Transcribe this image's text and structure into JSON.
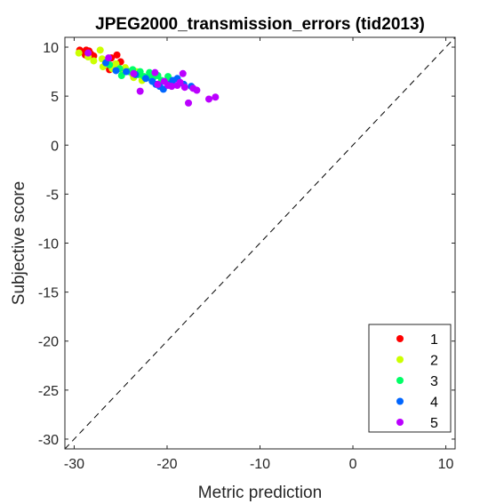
{
  "chart_data": {
    "type": "scatter",
    "title": "JPEG2000_transmission_errors (tid2013)",
    "xlabel": "Metric prediction",
    "ylabel": "Subjective score",
    "xlim": [
      -31,
      11
    ],
    "ylim": [
      -31,
      11
    ],
    "xticks": [
      -30,
      -20,
      -10,
      0,
      10
    ],
    "yticks": [
      10,
      5,
      0,
      -5,
      -10,
      -15,
      -20,
      -25,
      -30
    ],
    "grid": false,
    "legend_position": "bottom-right",
    "reference_line": "y = x (dashed)",
    "series": [
      {
        "name": "1",
        "color": "#ff0000",
        "points": [
          [
            -29.4,
            9.7
          ],
          [
            -29.0,
            9.5
          ],
          [
            -28.7,
            9.7
          ],
          [
            -28.4,
            9.6
          ],
          [
            -28.2,
            9.3
          ],
          [
            -27.9,
            9.1
          ],
          [
            -28.8,
            9.2
          ],
          [
            -26.0,
            8.9
          ],
          [
            -25.4,
            9.2
          ],
          [
            -25.0,
            8.5
          ],
          [
            -26.2,
            7.7
          ],
          [
            -25.6,
            8.2
          ]
        ]
      },
      {
        "name": "2",
        "color": "#ccff00",
        "points": [
          [
            -29.5,
            9.4
          ],
          [
            -28.5,
            9.0
          ],
          [
            -27.9,
            8.6
          ],
          [
            -27.2,
            9.7
          ],
          [
            -27.0,
            8.8
          ],
          [
            -26.5,
            8.3
          ],
          [
            -26.9,
            8.0
          ],
          [
            -25.9,
            7.8
          ],
          [
            -25.5,
            8.3
          ],
          [
            -24.8,
            7.6
          ],
          [
            -24.5,
            7.9
          ],
          [
            -23.7,
            7.2
          ],
          [
            -23.3,
            7.5
          ],
          [
            -23.6,
            6.9
          ],
          [
            -22.7,
            6.6
          ]
        ]
      },
      {
        "name": "3",
        "color": "#00ff66",
        "points": [
          [
            -26.2,
            8.2
          ],
          [
            -25.1,
            7.8
          ],
          [
            -24.9,
            7.1
          ],
          [
            -24.1,
            7.5
          ],
          [
            -23.7,
            7.7
          ],
          [
            -23.1,
            7.2
          ],
          [
            -22.5,
            7.0
          ],
          [
            -22.1,
            6.9
          ],
          [
            -21.5,
            6.9
          ],
          [
            -21.0,
            7.1
          ],
          [
            -20.6,
            6.6
          ],
          [
            -20.1,
            6.5
          ],
          [
            -19.9,
            7.0
          ],
          [
            -22.9,
            7.5
          ],
          [
            -21.9,
            7.4
          ]
        ]
      },
      {
        "name": "4",
        "color": "#0066ff",
        "points": [
          [
            -26.6,
            8.4
          ],
          [
            -25.5,
            7.6
          ],
          [
            -24.4,
            7.5
          ],
          [
            -23.4,
            7.2
          ],
          [
            -22.3,
            6.8
          ],
          [
            -21.6,
            6.5
          ],
          [
            -21.2,
            6.2
          ],
          [
            -20.8,
            6.0
          ],
          [
            -20.4,
            5.7
          ],
          [
            -19.7,
            6.2
          ],
          [
            -19.4,
            6.6
          ],
          [
            -18.9,
            6.8
          ],
          [
            -18.2,
            6.2
          ],
          [
            -17.4,
            6.0
          ]
        ]
      },
      {
        "name": "5",
        "color": "#bb00ff",
        "points": [
          [
            -28.5,
            9.4
          ],
          [
            -26.3,
            8.9
          ],
          [
            -23.6,
            7.3
          ],
          [
            -22.9,
            5.5
          ],
          [
            -21.3,
            7.4
          ],
          [
            -21.0,
            6.2
          ],
          [
            -20.3,
            6.5
          ],
          [
            -19.9,
            6.1
          ],
          [
            -19.5,
            6.0
          ],
          [
            -18.9,
            6.1
          ],
          [
            -18.6,
            6.4
          ],
          [
            -18.3,
            7.3
          ],
          [
            -18.1,
            5.9
          ],
          [
            -17.7,
            4.3
          ],
          [
            -17.2,
            5.8
          ],
          [
            -16.8,
            5.6
          ],
          [
            -15.5,
            4.7
          ],
          [
            -14.8,
            4.9
          ]
        ]
      }
    ]
  }
}
